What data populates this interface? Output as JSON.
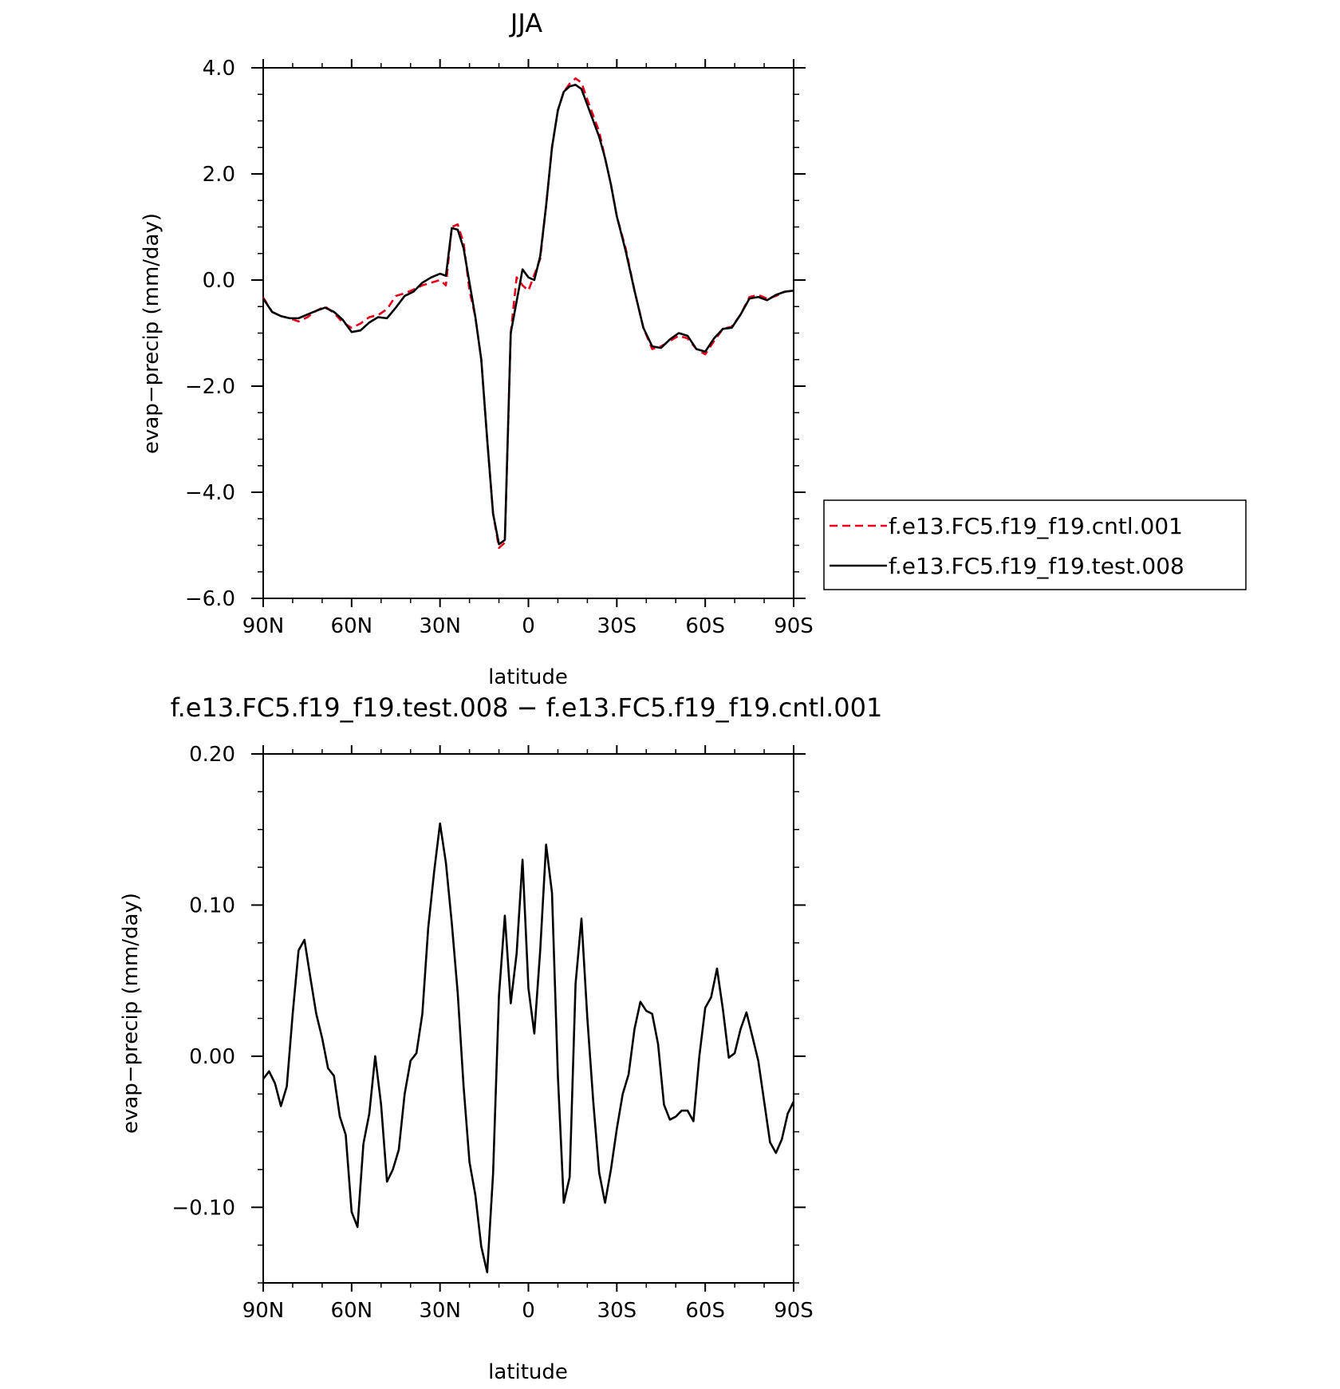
{
  "chart_data": [
    {
      "type": "line",
      "title": "JJA",
      "xlabel": "latitude",
      "ylabel": "evap−precip (mm/day)",
      "xlim": [
        -90,
        90
      ],
      "ylim": [
        -6.0,
        4.0
      ],
      "xticks": [
        {
          "value": -90,
          "label": "90N"
        },
        {
          "value": -60,
          "label": "60N"
        },
        {
          "value": -30,
          "label": "30N"
        },
        {
          "value": 0,
          "label": "0"
        },
        {
          "value": 30,
          "label": "30S"
        },
        {
          "value": 60,
          "label": "60S"
        },
        {
          "value": 90,
          "label": "90S"
        }
      ],
      "yticks": [
        {
          "value": 4.0,
          "label": "4.0"
        },
        {
          "value": 2.0,
          "label": "2.0"
        },
        {
          "value": 0.0,
          "label": "0.0"
        },
        {
          "value": -2.0,
          "label": "−2.0"
        },
        {
          "value": -4.0,
          "label": "−4.0"
        },
        {
          "value": -6.0,
          "label": "−6.0"
        }
      ],
      "legend_position": "right",
      "series": [
        {
          "name": "f.e13.FC5.f19_f19.cntl.001",
          "color": "#e8001a",
          "style": "dashed",
          "x": [
            -90,
            -87,
            -84,
            -81,
            -78,
            -75,
            -72,
            -69,
            -66,
            -63,
            -60,
            -57,
            -54,
            -51,
            -48,
            -45,
            -42,
            -39,
            -36,
            -33,
            -30,
            -28,
            -26,
            -24,
            -22,
            -20,
            -18,
            -16,
            -14,
            -12,
            -10,
            -8,
            -6,
            -4,
            -2,
            0,
            2,
            4,
            6,
            8,
            10,
            12,
            14,
            16,
            18,
            20,
            22,
            24,
            26,
            28,
            30,
            33,
            36,
            39,
            42,
            45,
            48,
            51,
            54,
            57,
            60,
            63,
            66,
            69,
            72,
            75,
            78,
            81,
            84,
            87,
            90
          ],
          "y": [
            -0.33,
            -0.6,
            -0.68,
            -0.72,
            -0.78,
            -0.7,
            -0.58,
            -0.5,
            -0.62,
            -0.8,
            -0.9,
            -0.82,
            -0.7,
            -0.66,
            -0.55,
            -0.3,
            -0.25,
            -0.18,
            -0.1,
            -0.05,
            0.0,
            -0.1,
            1.0,
            1.05,
            0.7,
            -0.2,
            -0.7,
            -1.5,
            -3.0,
            -4.4,
            -5.05,
            -4.95,
            -1.0,
            0.05,
            -0.1,
            -0.2,
            0.1,
            0.4,
            1.4,
            2.5,
            3.2,
            3.55,
            3.7,
            3.8,
            3.72,
            3.4,
            3.1,
            2.8,
            2.3,
            1.8,
            1.2,
            0.6,
            -0.2,
            -0.9,
            -1.3,
            -1.25,
            -1.15,
            -1.05,
            -1.1,
            -1.3,
            -1.4,
            -1.15,
            -0.92,
            -0.88,
            -0.65,
            -0.32,
            -0.28,
            -0.35,
            -0.3,
            -0.22,
            -0.2
          ]
        },
        {
          "name": "f.e13.FC5.f19_f19.test.008",
          "color": "#000000",
          "style": "solid",
          "x": [
            -90,
            -87,
            -84,
            -81,
            -78,
            -75,
            -72,
            -69,
            -66,
            -63,
            -60,
            -57,
            -54,
            -51,
            -48,
            -45,
            -42,
            -39,
            -36,
            -33,
            -30,
            -28,
            -26,
            -24,
            -22,
            -20,
            -18,
            -16,
            -14,
            -12,
            -10,
            -8,
            -6,
            -4,
            -2,
            0,
            2,
            4,
            6,
            8,
            10,
            12,
            14,
            16,
            18,
            20,
            22,
            24,
            26,
            28,
            30,
            33,
            36,
            39,
            42,
            45,
            48,
            51,
            54,
            57,
            60,
            63,
            66,
            69,
            72,
            75,
            78,
            81,
            84,
            87,
            90
          ],
          "y": [
            -0.35,
            -0.6,
            -0.68,
            -0.72,
            -0.72,
            -0.65,
            -0.58,
            -0.52,
            -0.6,
            -0.75,
            -0.98,
            -0.95,
            -0.8,
            -0.7,
            -0.72,
            -0.52,
            -0.3,
            -0.22,
            -0.05,
            0.05,
            0.12,
            0.08,
            0.98,
            0.95,
            0.6,
            -0.05,
            -0.7,
            -1.5,
            -3.0,
            -4.4,
            -4.98,
            -4.9,
            -1.0,
            -0.4,
            0.2,
            0.05,
            0.0,
            0.45,
            1.4,
            2.5,
            3.2,
            3.55,
            3.65,
            3.68,
            3.6,
            3.3,
            3.0,
            2.7,
            2.3,
            1.8,
            1.2,
            0.55,
            -0.2,
            -0.9,
            -1.25,
            -1.28,
            -1.12,
            -1.0,
            -1.05,
            -1.3,
            -1.35,
            -1.1,
            -0.92,
            -0.9,
            -0.65,
            -0.35,
            -0.32,
            -0.38,
            -0.28,
            -0.22,
            -0.2
          ]
        }
      ]
    },
    {
      "type": "line",
      "title": "f.e13.FC5.f19_f19.test.008 − f.e13.FC5.f19_f19.cntl.001",
      "xlabel": "latitude",
      "ylabel": "evap−precip (mm/day)",
      "xlim": [
        -90,
        90
      ],
      "ylim": [
        -0.15,
        0.2
      ],
      "xticks": [
        {
          "value": -90,
          "label": "90N"
        },
        {
          "value": -60,
          "label": "60N"
        },
        {
          "value": -30,
          "label": "30N"
        },
        {
          "value": 0,
          "label": "0"
        },
        {
          "value": 30,
          "label": "30S"
        },
        {
          "value": 60,
          "label": "60S"
        },
        {
          "value": 90,
          "label": "90S"
        }
      ],
      "yticks": [
        {
          "value": 0.2,
          "label": "0.20"
        },
        {
          "value": 0.1,
          "label": "0.10"
        },
        {
          "value": 0.0,
          "label": "0.00"
        },
        {
          "value": -0.1,
          "label": "−0.10"
        }
      ],
      "series": [
        {
          "color": "#000000",
          "style": "solid",
          "x": [
            -90,
            -88,
            -86,
            -84,
            -82,
            -80,
            -78,
            -76,
            -74,
            -72,
            -70,
            -68,
            -66,
            -64,
            -62,
            -60,
            -58,
            -56,
            -54,
            -52,
            -50,
            -48,
            -46,
            -44,
            -42,
            -40,
            -38,
            -36,
            -34,
            -32,
            -30,
            -28,
            -26,
            -24,
            -22,
            -20,
            -18,
            -16,
            -14,
            -12,
            -10,
            -8,
            -6,
            -4,
            -2,
            0,
            2,
            4,
            6,
            8,
            10,
            12,
            14,
            16,
            18,
            20,
            22,
            24,
            26,
            28,
            30,
            32,
            34,
            36,
            38,
            40,
            42,
            44,
            46,
            48,
            50,
            52,
            54,
            56,
            58,
            60,
            62,
            64,
            66,
            68,
            70,
            72,
            74,
            76,
            78,
            80,
            82,
            84,
            86,
            88,
            90
          ],
          "y": [
            -0.015,
            -0.01,
            -0.018,
            -0.033,
            -0.02,
            0.028,
            0.07,
            0.077,
            0.052,
            0.028,
            0.012,
            -0.008,
            -0.013,
            -0.04,
            -0.052,
            -0.103,
            -0.113,
            -0.058,
            -0.038,
            0.0,
            -0.032,
            -0.083,
            -0.075,
            -0.062,
            -0.025,
            -0.003,
            0.002,
            0.028,
            0.085,
            0.122,
            0.154,
            0.128,
            0.088,
            0.042,
            -0.02,
            -0.07,
            -0.092,
            -0.126,
            -0.143,
            -0.078,
            0.04,
            0.093,
            0.035,
            0.068,
            0.13,
            0.045,
            0.015,
            0.07,
            0.14,
            0.108,
            -0.013,
            -0.097,
            -0.08,
            0.048,
            0.091,
            0.025,
            -0.03,
            -0.077,
            -0.097,
            -0.075,
            -0.048,
            -0.025,
            -0.012,
            0.018,
            0.036,
            0.03,
            0.028,
            0.008,
            -0.032,
            -0.042,
            -0.04,
            -0.036,
            -0.036,
            -0.043,
            0.0,
            0.032,
            0.039,
            0.058,
            0.031,
            -0.001,
            0.002,
            0.018,
            0.029,
            0.013,
            -0.003,
            -0.03,
            -0.057,
            -0.064,
            -0.055,
            -0.038,
            -0.03
          ]
        }
      ]
    }
  ]
}
